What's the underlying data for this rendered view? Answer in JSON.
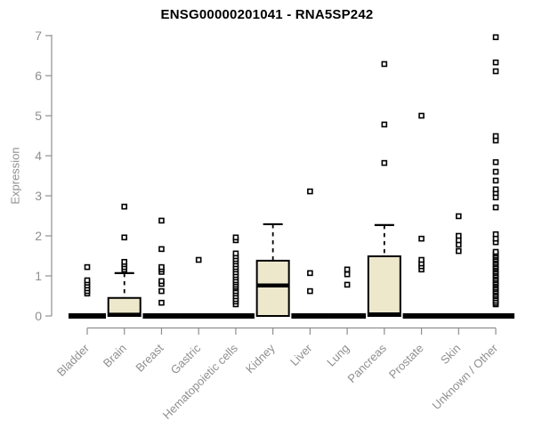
{
  "chart_data": {
    "type": "boxplot",
    "title": "ENSG00000201041 - RNA5SP242",
    "xlabel": "",
    "ylabel": "Expression",
    "ylim": [
      0,
      7
    ],
    "yticks": [
      "0",
      "1",
      "2",
      "3",
      "4",
      "5",
      "6",
      "7"
    ],
    "grid": false,
    "legend": "none",
    "colors": {
      "box_fill": "#ede8cc",
      "box_stroke": "#000000",
      "axis": "#8f8f8f",
      "title": "#000000"
    },
    "categories": [
      "Bladder",
      "Brain",
      "Breast",
      "Gastric",
      "Hematopoietic cells",
      "Kidney",
      "Liver",
      "Lung",
      "Pancreas",
      "Prostate",
      "Skin",
      "Unknown / Other"
    ],
    "series": [
      {
        "label": "Bladder",
        "q1": 0,
        "median": 0,
        "q3": 0,
        "whisker_low": 0,
        "whisker_high": 0,
        "outliers": [
          0.56,
          0.62,
          0.69,
          0.76,
          0.83,
          0.89,
          1.22
        ]
      },
      {
        "label": "Brain",
        "q1": 0,
        "median": 0.03,
        "q3": 0.45,
        "whisker_low": 0,
        "whisker_high": 1.07,
        "outliers": [
          1.16,
          1.22,
          1.29,
          1.35,
          1.96,
          2.73
        ]
      },
      {
        "label": "Breast",
        "q1": 0,
        "median": 0,
        "q3": 0,
        "whisker_low": 0,
        "whisker_high": 0,
        "outliers": [
          0.33,
          0.62,
          0.8,
          0.87,
          1.1,
          1.16,
          1.22,
          1.67,
          2.38
        ]
      },
      {
        "label": "Gastric",
        "q1": 0,
        "median": 0,
        "q3": 0,
        "whisker_low": 0,
        "whisker_high": 0,
        "outliers": [
          1.4
        ]
      },
      {
        "label": "Hematopoietic cells",
        "q1": 0,
        "median": 0,
        "q3": 0,
        "whisker_low": 0,
        "whisker_high": 0,
        "outliers": [
          0.29,
          0.36,
          0.42,
          0.49,
          0.56,
          0.62,
          0.69,
          0.73,
          0.78,
          0.84,
          0.89,
          0.96,
          1.02,
          1.09,
          1.16,
          1.22,
          1.29,
          1.36,
          1.42,
          1.49,
          1.56,
          1.89,
          1.96
        ]
      },
      {
        "label": "Kidney",
        "q1": 0,
        "median": 0.76,
        "q3": 1.38,
        "whisker_low": 0,
        "whisker_high": 2.29,
        "outliers": []
      },
      {
        "label": "Liver",
        "q1": 0,
        "median": 0,
        "q3": 0,
        "whisker_low": 0,
        "whisker_high": 0,
        "outliers": [
          0.62,
          1.07,
          3.11
        ]
      },
      {
        "label": "Lung",
        "q1": 0,
        "median": 0,
        "q3": 0,
        "whisker_low": 0,
        "whisker_high": 0,
        "outliers": [
          0.78,
          1.04,
          1.16
        ]
      },
      {
        "label": "Pancreas",
        "q1": 0,
        "median": 0.04,
        "q3": 1.49,
        "whisker_low": 0,
        "whisker_high": 2.27,
        "outliers": [
          3.82,
          4.78,
          6.29
        ]
      },
      {
        "label": "Prostate",
        "q1": 0,
        "median": 0,
        "q3": 0,
        "whisker_low": 0,
        "whisker_high": 0,
        "outliers": [
          1.16,
          1.24,
          1.31,
          1.4,
          1.93,
          5.0
        ]
      },
      {
        "label": "Skin",
        "q1": 0,
        "median": 0,
        "q3": 0,
        "whisker_low": 0,
        "whisker_high": 0,
        "outliers": [
          1.62,
          1.78,
          1.89,
          2.0,
          2.49
        ]
      },
      {
        "label": "Unknown / Other",
        "q1": 0,
        "median": 0,
        "q3": 0,
        "whisker_low": 0,
        "whisker_high": 0,
        "outliers": [
          0.29,
          0.33,
          0.38,
          0.44,
          0.49,
          0.53,
          0.58,
          0.62,
          0.67,
          0.71,
          0.76,
          0.8,
          0.84,
          0.89,
          0.93,
          0.98,
          1.02,
          1.07,
          1.11,
          1.16,
          1.2,
          1.24,
          1.29,
          1.33,
          1.38,
          1.42,
          1.47,
          1.51,
          1.56,
          1.6,
          1.84,
          1.93,
          2.04,
          2.71,
          2.96,
          3.07,
          3.16,
          3.38,
          3.6,
          3.84,
          4.38,
          4.49,
          6.11,
          6.33,
          6.96
        ]
      }
    ]
  }
}
